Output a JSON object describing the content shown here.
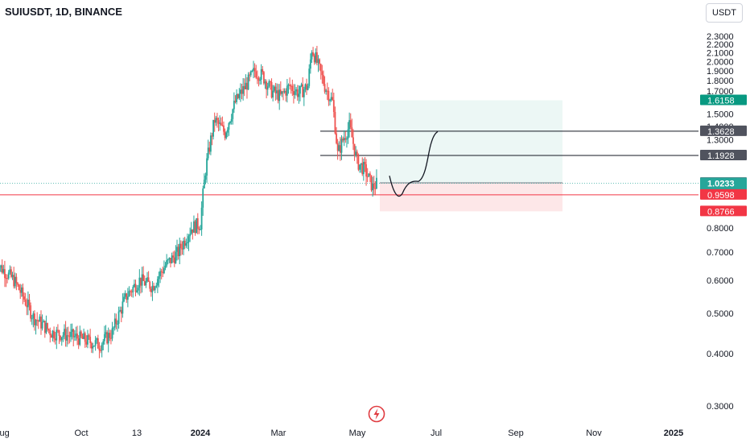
{
  "header": {
    "title": "SUIUSDT, 1D, BINANCE",
    "currency_button": "USDT"
  },
  "colors": {
    "up": "#26a69a",
    "down": "#ef5350",
    "line": "#131722",
    "red_line": "#f23645",
    "dotted": "#26a69a"
  },
  "chart_data": {
    "type": "candlestick",
    "title": "SUIUSDT, 1D, BINANCE",
    "y_axis": {
      "scale": "log",
      "ticks": [
        "2.3000",
        "2.2000",
        "2.1000",
        "2.0000",
        "1.9000",
        "1.8000",
        "1.7000",
        "1.5000",
        "1.4000",
        "1.3000",
        "0.8000",
        "0.7000",
        "0.6000",
        "0.5000",
        "0.4000",
        "0.3000"
      ]
    },
    "x_axis": {
      "ticks": [
        "Aug",
        "Oct",
        "13",
        "2024",
        "Mar",
        "May",
        "Jul",
        "Sep",
        "Nov",
        "2025"
      ]
    },
    "price_labels": [
      {
        "value": "1.6158",
        "color": "#089981"
      },
      {
        "value": "1.3628",
        "color": "#50535e"
      },
      {
        "value": "1.1928",
        "color": "#50535e"
      },
      {
        "value": "1.0255",
        "color": "#787b86"
      },
      {
        "value": "1.0233",
        "color": "#26a69a",
        "sub": "09:07:02"
      },
      {
        "value": "0.9598",
        "color": "#f23645"
      },
      {
        "value": "0.8766",
        "color": "#f23645"
      }
    ],
    "horizontal_lines": [
      {
        "value": 1.3628,
        "color": "#131722"
      },
      {
        "value": 1.1928,
        "color": "#131722"
      },
      {
        "value": 0.9598,
        "color": "#f23645"
      },
      {
        "value": 1.0233,
        "color": "#26a69a",
        "style": "dotted"
      }
    ],
    "position": {
      "entry": 1.0255,
      "target": 1.6158,
      "stop": 0.8766
    },
    "close_path": [
      [
        "2023-07-27",
        0.66
      ],
      [
        "2023-08-10",
        0.6
      ],
      [
        "2023-08-25",
        0.49
      ],
      [
        "2023-09-08",
        0.45
      ],
      [
        "2023-09-25",
        0.44
      ],
      [
        "2023-10-05",
        0.43
      ],
      [
        "2023-10-15",
        0.42
      ],
      [
        "2023-10-25",
        0.45
      ],
      [
        "2023-11-05",
        0.55
      ],
      [
        "2023-11-15",
        0.6
      ],
      [
        "2023-11-25",
        0.58
      ],
      [
        "2023-12-05",
        0.65
      ],
      [
        "2023-12-15",
        0.7
      ],
      [
        "2023-12-25",
        0.8
      ],
      [
        "2024-01-01",
        0.82
      ],
      [
        "2024-01-05",
        1.1
      ],
      [
        "2024-01-12",
        1.45
      ],
      [
        "2024-01-20",
        1.35
      ],
      [
        "2024-01-28",
        1.6
      ],
      [
        "2024-02-05",
        1.75
      ],
      [
        "2024-02-12",
        1.9
      ],
      [
        "2024-02-18",
        1.85
      ],
      [
        "2024-02-25",
        1.7
      ],
      [
        "2024-03-03",
        1.65
      ],
      [
        "2024-03-10",
        1.75
      ],
      [
        "2024-03-17",
        1.68
      ],
      [
        "2024-03-24",
        1.75
      ],
      [
        "2024-03-27",
        2.15
      ],
      [
        "2024-04-01",
        1.95
      ],
      [
        "2024-04-06",
        1.75
      ],
      [
        "2024-04-12",
        1.6
      ],
      [
        "2024-04-16",
        1.2
      ],
      [
        "2024-04-20",
        1.3
      ],
      [
        "2024-04-25",
        1.4
      ],
      [
        "2024-05-01",
        1.15
      ],
      [
        "2024-05-07",
        1.1
      ],
      [
        "2024-05-13",
        1.0
      ],
      [
        "2024-05-16",
        1.02
      ]
    ]
  },
  "drawing": {
    "type": "projection-curve"
  }
}
